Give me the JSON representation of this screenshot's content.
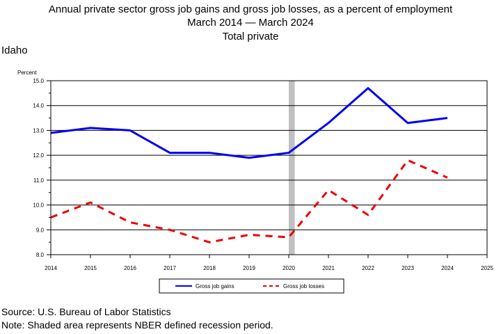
{
  "title_line1": "Annual private sector gross job gains and gross job losses, as a percent of employment",
  "title_line2": "March 2014 — March 2024",
  "title_line3": "Total private",
  "region": "Idaho",
  "source": "Source: U.S. Bureau of Labor Statistics",
  "note": "Note: Shaded area represents NBER defined recession period.",
  "colors": {
    "gains": "#0000ee",
    "losses": "#ee0000",
    "recession": "#c0c0c0"
  },
  "chart_data": {
    "type": "line",
    "ylabel": "Percent",
    "xlim": [
      2014,
      2025
    ],
    "ylim": [
      8.0,
      15.0
    ],
    "x_ticks": [
      "2014",
      "2015",
      "2016",
      "2017",
      "2018",
      "2019",
      "2020",
      "2021",
      "2022",
      "2023",
      "2024",
      "2025"
    ],
    "y_ticks": [
      "8.0",
      "9.0",
      "10.0",
      "11.0",
      "12.0",
      "13.0",
      "14.0",
      "15.0"
    ],
    "recession": [
      2020.0,
      2020.15
    ],
    "grid": true,
    "legend_position": "bottom",
    "series": [
      {
        "name": "Gross job gains",
        "style": "solid",
        "x": [
          2014,
          2015,
          2016,
          2017,
          2018,
          2019,
          2020,
          2021,
          2022,
          2023,
          2024
        ],
        "values": [
          12.9,
          13.1,
          13.0,
          12.1,
          12.1,
          11.9,
          12.1,
          13.3,
          14.7,
          13.3,
          13.5
        ]
      },
      {
        "name": "Gross job losses",
        "style": "dashed",
        "x": [
          2014,
          2015,
          2016,
          2017,
          2018,
          2019,
          2020,
          2021,
          2022,
          2023,
          2024
        ],
        "values": [
          9.5,
          10.1,
          9.3,
          9.0,
          8.5,
          8.8,
          8.7,
          10.6,
          9.6,
          11.8,
          11.1
        ]
      }
    ]
  }
}
